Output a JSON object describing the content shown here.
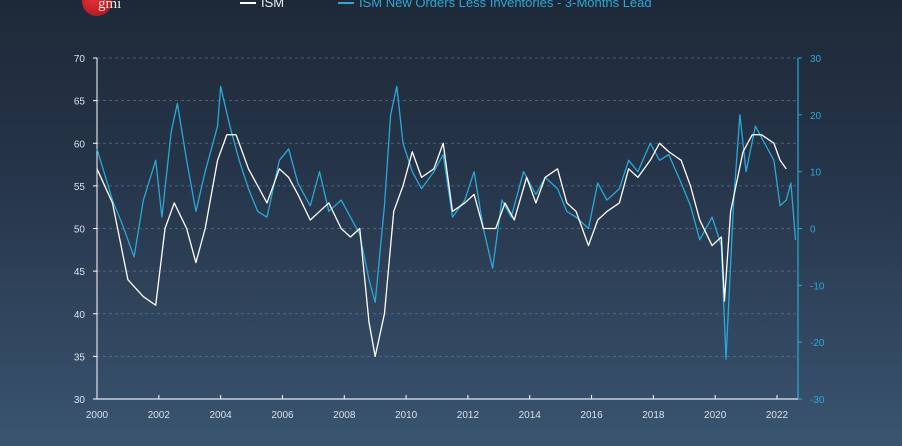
{
  "logo": {
    "text": "gmi"
  },
  "chart_data": {
    "type": "line",
    "title": "",
    "legend_placement": "top",
    "grid": true,
    "xlim": [
      2000,
      2022.7
    ],
    "x_ticks": [
      "2000",
      "2002",
      "2004",
      "2006",
      "2008",
      "2010",
      "2012",
      "2014",
      "2016",
      "2018",
      "2020",
      "2022"
    ],
    "y_left": {
      "lim": [
        30,
        70
      ],
      "ticks": [
        "30",
        "35",
        "40",
        "45",
        "50",
        "55",
        "60",
        "65",
        "70"
      ]
    },
    "y_right": {
      "lim": [
        -30,
        30
      ],
      "ticks": [
        "-30",
        "-20",
        "-10",
        "0",
        "10",
        "20",
        "30"
      ]
    },
    "colors": {
      "ISM": "#ffffff",
      "lead": "#2aa8d8",
      "left_axis": "#ffffff",
      "right_axis": "#2aa8d8"
    },
    "series": [
      {
        "name": "ISM",
        "axis": "left",
        "x": [
          2000.0,
          2000.5,
          2001.0,
          2001.5,
          2001.9,
          2002.2,
          2002.5,
          2002.9,
          2003.2,
          2003.5,
          2003.9,
          2004.2,
          2004.5,
          2004.9,
          2005.2,
          2005.5,
          2005.9,
          2006.2,
          2006.5,
          2006.9,
          2007.2,
          2007.5,
          2007.9,
          2008.2,
          2008.5,
          2008.8,
          2009.0,
          2009.3,
          2009.6,
          2009.9,
          2010.2,
          2010.5,
          2010.9,
          2011.2,
          2011.5,
          2011.9,
          2012.2,
          2012.5,
          2012.9,
          2013.2,
          2013.5,
          2013.9,
          2014.2,
          2014.5,
          2014.9,
          2015.2,
          2015.5,
          2015.9,
          2016.2,
          2016.5,
          2016.9,
          2017.2,
          2017.5,
          2017.9,
          2018.2,
          2018.5,
          2018.9,
          2019.2,
          2019.5,
          2019.9,
          2020.2,
          2020.3,
          2020.5,
          2020.9,
          2021.2,
          2021.5,
          2021.9,
          2022.1,
          2022.3
        ],
        "y": [
          57,
          53,
          44,
          42,
          41,
          50,
          53,
          50,
          46,
          50,
          58,
          61,
          61,
          57,
          55,
          53,
          57,
          56,
          54,
          51,
          52,
          53,
          50,
          49,
          50,
          39,
          35,
          40,
          52,
          55,
          59,
          56,
          57,
          60,
          52,
          53,
          54,
          50,
          50,
          53,
          51,
          56,
          53,
          56,
          57,
          53,
          52,
          48,
          51,
          52,
          53,
          57,
          56,
          58,
          60,
          59,
          58,
          55,
          51,
          48,
          49,
          41.5,
          52,
          59,
          61,
          61,
          60,
          58,
          57
        ]
      },
      {
        "name": "ISM New Orders Less Inventories - 3-Months Lead",
        "axis": "right",
        "x": [
          2000.0,
          2000.5,
          2000.8,
          2001.2,
          2001.5,
          2001.9,
          2002.1,
          2002.4,
          2002.6,
          2002.9,
          2003.2,
          2003.5,
          2003.9,
          2004.0,
          2004.3,
          2004.6,
          2004.9,
          2005.2,
          2005.5,
          2005.9,
          2006.2,
          2006.5,
          2006.9,
          2007.2,
          2007.5,
          2007.9,
          2008.2,
          2008.5,
          2008.8,
          2009.0,
          2009.3,
          2009.5,
          2009.7,
          2009.9,
          2010.2,
          2010.5,
          2010.9,
          2011.2,
          2011.5,
          2011.9,
          2012.2,
          2012.5,
          2012.8,
          2013.1,
          2013.4,
          2013.8,
          2014.2,
          2014.5,
          2014.9,
          2015.2,
          2015.5,
          2015.9,
          2016.2,
          2016.5,
          2016.9,
          2017.2,
          2017.5,
          2017.9,
          2018.2,
          2018.5,
          2018.9,
          2019.2,
          2019.5,
          2019.9,
          2020.2,
          2020.35,
          2020.6,
          2020.8,
          2021.0,
          2021.3,
          2021.6,
          2021.9,
          2022.1,
          2022.3,
          2022.45,
          2022.6
        ],
        "y": [
          14,
          5,
          1,
          -5,
          5,
          12,
          2,
          17,
          22,
          12,
          3,
          10,
          18,
          25,
          18,
          12,
          7,
          3,
          2,
          12,
          14,
          8,
          4,
          10,
          3,
          5,
          2,
          -1,
          -9,
          -13,
          4,
          20,
          25,
          15,
          10,
          7,
          10,
          13,
          2,
          5,
          10,
          0,
          -7,
          5,
          2,
          10,
          6,
          9,
          7,
          3,
          2,
          0,
          8,
          5,
          7,
          12,
          10,
          15,
          12,
          13,
          8,
          4,
          -2,
          2,
          -3,
          -23,
          5,
          20,
          10,
          18,
          15,
          12,
          4,
          5,
          8,
          -2
        ]
      }
    ]
  }
}
